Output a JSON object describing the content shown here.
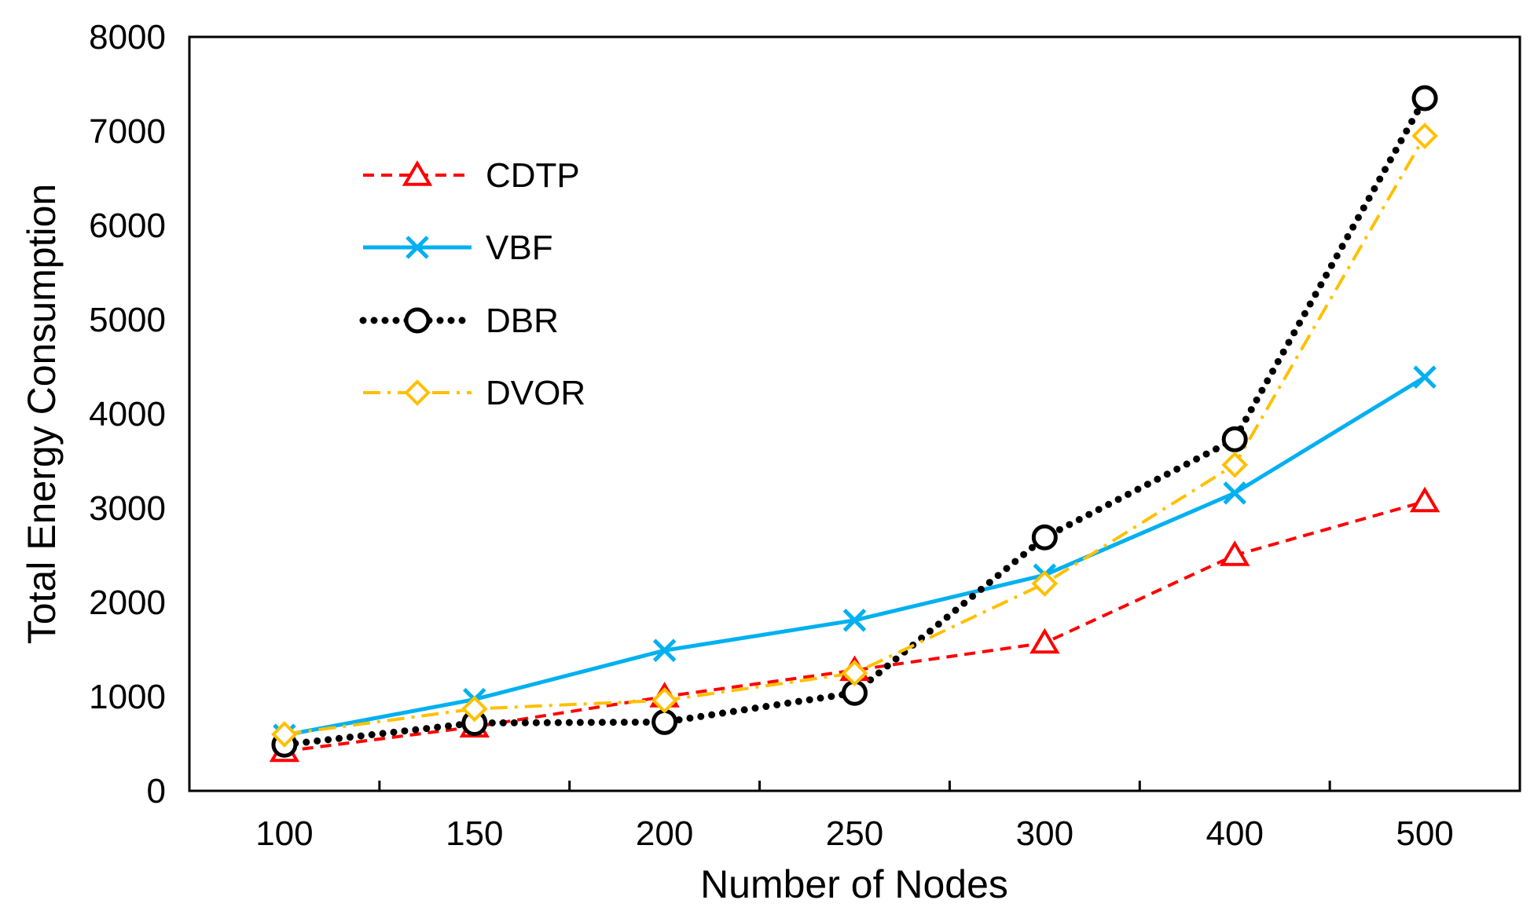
{
  "chart_data": {
    "type": "line",
    "title": "",
    "xlabel": "Number of Nodes",
    "ylabel": "Total Energy Consumption",
    "categories": [
      "100",
      "150",
      "200",
      "250",
      "300",
      "400",
      "500"
    ],
    "ylim": [
      0,
      8000
    ],
    "yticks": [
      "0",
      "1000",
      "2000",
      "3000",
      "4000",
      "5000",
      "6000",
      "7000",
      "8000"
    ],
    "grid": false,
    "legend_position": "top-left",
    "series": [
      {
        "name": "CDTP",
        "marker": "triangle",
        "style": "dashed",
        "color": "#ff0000",
        "values": [
          420,
          680,
          1000,
          1280,
          1570,
          2500,
          3070
        ]
      },
      {
        "name": "VBF",
        "marker": "x",
        "style": "solid",
        "color": "#00b0f0",
        "values": [
          590,
          970,
          1490,
          1810,
          2290,
          3160,
          4390
        ]
      },
      {
        "name": "DBR",
        "marker": "circle",
        "style": "dotted",
        "color": "#000000",
        "values": [
          490,
          720,
          730,
          1040,
          2690,
          3730,
          7350
        ]
      },
      {
        "name": "DVOR",
        "marker": "diamond",
        "style": "dashdot",
        "color": "#ffc000",
        "values": [
          600,
          870,
          960,
          1250,
          2200,
          3460,
          6950
        ]
      }
    ]
  }
}
